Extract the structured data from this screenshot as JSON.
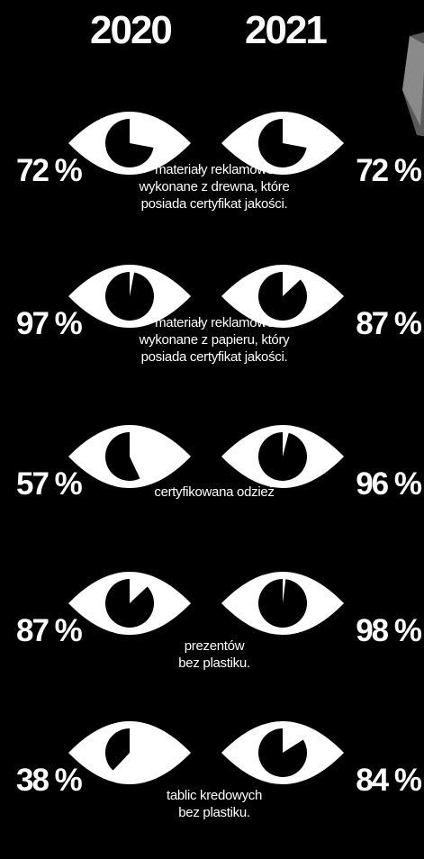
{
  "chart_data": {
    "type": "pie",
    "years": [
      "2020",
      "2021"
    ],
    "items": [
      {
        "label": [
          "materiały reklamowe",
          "wykonane z drewna, które",
          "posiada certyfikat jakości."
        ],
        "values": [
          72,
          72
        ]
      },
      {
        "label": [
          "materiały reklamowe",
          "wykonane z papieru, który",
          "posiada certyfikat jakości."
        ],
        "values": [
          97,
          87
        ]
      },
      {
        "label": [
          "certyfikowana odzież"
        ],
        "values": [
          57,
          96
        ]
      },
      {
        "label": [
          "prezentów",
          "bez plastiku."
        ],
        "values": [
          87,
          98
        ]
      },
      {
        "label": [
          "tablic kredowych",
          "bez plastiku."
        ],
        "values": [
          38,
          84
        ]
      }
    ],
    "value_suffix": " %"
  },
  "colors": {
    "background": "#000000",
    "foreground": "#ffffff",
    "pupil": "#000000"
  },
  "icons": {
    "eye": "eye-icon",
    "pupil": "pupil-pie-icon"
  }
}
